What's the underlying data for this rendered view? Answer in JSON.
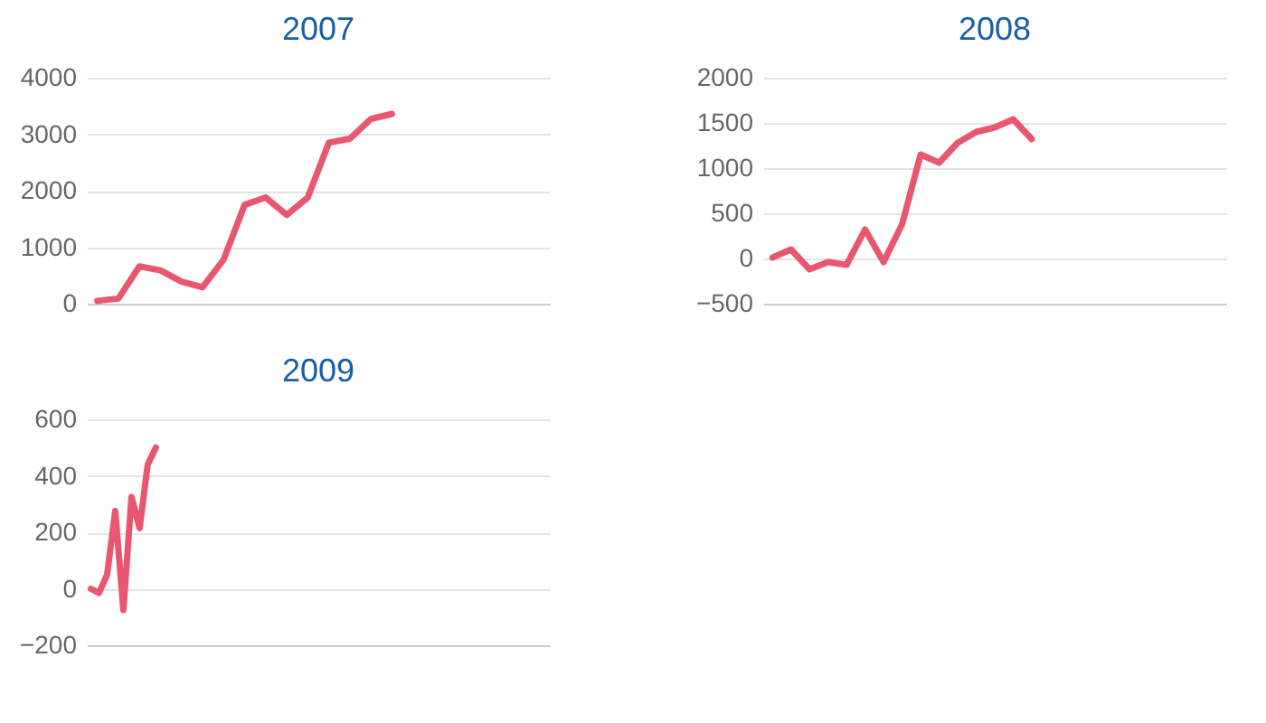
{
  "chart_data": [
    {
      "type": "line",
      "title": "2007",
      "categories": [
        null,
        null,
        null,
        null,
        null,
        null,
        null,
        null,
        null,
        null,
        null,
        null,
        null,
        null,
        null,
        null,
        null,
        null,
        null,
        null,
        null,
        null
      ],
      "series": [
        {
          "color": "#e8566f",
          "values": [
            50,
            90,
            660,
            590,
            390,
            290,
            780,
            1750,
            1880,
            1570,
            1880,
            2850,
            2920,
            3270,
            3360,
            null,
            null,
            null,
            null,
            null,
            null,
            null
          ]
        }
      ],
      "ylim": [
        0,
        4000
      ],
      "yticks": [
        0,
        1000,
        2000,
        3000,
        4000
      ],
      "grid": "y",
      "tick_labels": "y",
      "legend": false
    },
    {
      "type": "line",
      "title": "2008",
      "categories": [
        null,
        null,
        null,
        null,
        null,
        null,
        null,
        null,
        null,
        null,
        null,
        null,
        null,
        null,
        null,
        null,
        null,
        null,
        null,
        null,
        null,
        null,
        null,
        null,
        null
      ],
      "series": [
        {
          "color": "#e8566f",
          "values": [
            10,
            100,
            -120,
            -40,
            -70,
            320,
            -40,
            380,
            1150,
            1060,
            1280,
            1400,
            1450,
            1540,
            1320,
            null,
            null,
            null,
            null,
            null,
            null,
            null,
            null,
            null,
            null
          ]
        }
      ],
      "ylim": [
        -500,
        2000
      ],
      "yticks": [
        -500,
        0,
        500,
        1000,
        1500,
        2000
      ],
      "grid": "y",
      "tick_labels": "y",
      "legend": false
    },
    {
      "type": "line",
      "title": "2009",
      "categories": [
        null,
        null,
        null,
        null,
        null,
        null,
        null,
        null,
        null,
        null,
        null,
        null,
        null,
        null,
        null,
        null,
        null,
        null,
        null,
        null,
        null,
        null,
        null,
        null,
        null,
        null,
        null,
        null,
        null,
        null,
        null,
        null,
        null,
        null,
        null,
        null,
        null,
        null,
        null,
        null,
        null,
        null,
        null,
        null,
        null,
        null,
        null,
        null,
        null,
        null,
        null,
        null,
        null,
        null,
        null,
        null,
        null
      ],
      "series": [
        {
          "color": "#e8566f",
          "values": [
            0,
            -15,
            50,
            275,
            -75,
            325,
            215,
            440,
            500,
            null,
            null,
            null,
            null,
            null,
            null,
            null,
            null,
            null,
            null,
            null,
            null,
            null,
            null,
            null,
            null,
            null,
            null,
            null,
            null,
            null,
            null,
            null,
            null,
            null,
            null,
            null,
            null,
            null,
            null,
            null,
            null,
            null,
            null,
            null,
            null,
            null,
            null,
            null,
            null,
            null,
            null,
            null,
            null,
            null,
            null,
            null,
            null
          ]
        }
      ],
      "ylim": [
        -200,
        600
      ],
      "yticks": [
        -200,
        0,
        200,
        400,
        600
      ],
      "grid": "y",
      "tick_labels": "y",
      "legend": false
    }
  ]
}
